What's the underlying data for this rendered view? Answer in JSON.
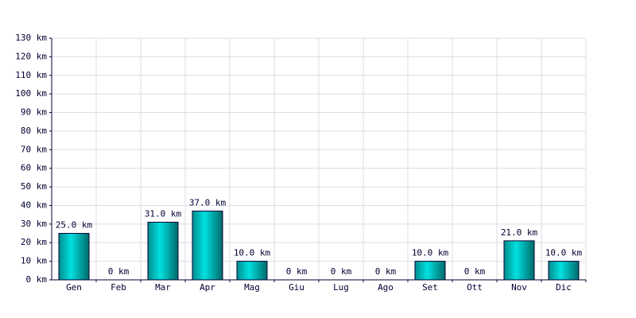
{
  "chart_data": {
    "type": "bar",
    "categories": [
      "Gen",
      "Feb",
      "Mar",
      "Apr",
      "Mag",
      "Giu",
      "Lug",
      "Ago",
      "Set",
      "Ott",
      "Nov",
      "Dic"
    ],
    "values": [
      25,
      0,
      31,
      37,
      10,
      0,
      0,
      0,
      10,
      0,
      21,
      10
    ],
    "value_labels": [
      "25.0 km",
      "0 km",
      "31.0 km",
      "37.0 km",
      "10.0 km",
      "0 km",
      "0 km",
      "0 km",
      "10.0 km",
      "0 km",
      "21.0 km",
      "10.0 km"
    ],
    "color": "#00e0e0",
    "ylim": [
      0,
      130
    ],
    "yticks": [
      {
        "value": 0,
        "label": "0 km"
      },
      {
        "value": 10,
        "label": "10 km"
      },
      {
        "value": 20,
        "label": "20 km"
      },
      {
        "value": 30,
        "label": "30 km"
      },
      {
        "value": 40,
        "label": "40 km"
      },
      {
        "value": 50,
        "label": "50 km"
      },
      {
        "value": 60,
        "label": "60 km"
      },
      {
        "value": 70,
        "label": "70 km"
      },
      {
        "value": 80,
        "label": "80 km"
      },
      {
        "value": 90,
        "label": "90 km"
      },
      {
        "value": 100,
        "label": "100 km"
      },
      {
        "value": 110,
        "label": "110 km"
      },
      {
        "value": 120,
        "label": "120 km"
      },
      {
        "value": 130,
        "label": "130 km"
      }
    ],
    "grid": true
  }
}
